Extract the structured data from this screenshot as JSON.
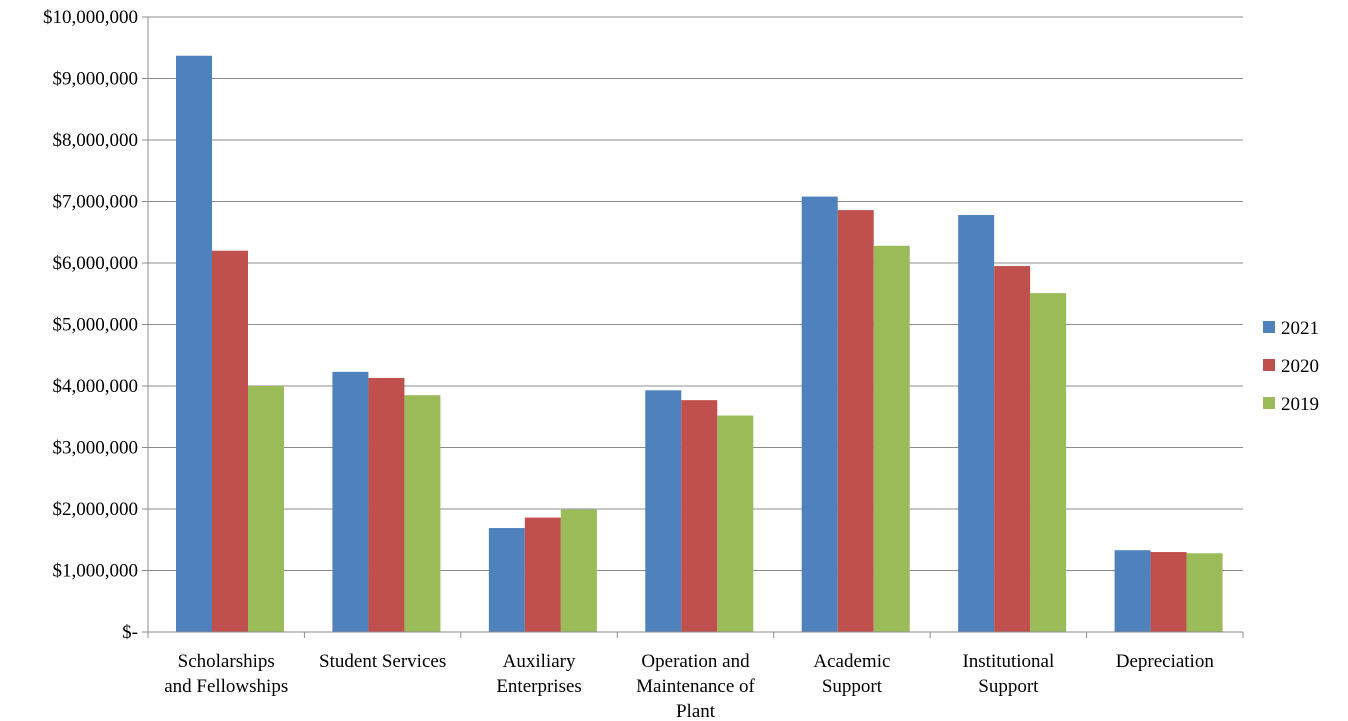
{
  "chart_data": {
    "type": "bar",
    "title": "",
    "xlabel": "",
    "ylabel": "",
    "categories": [
      [
        "Scholarships",
        "and Fellowships"
      ],
      [
        "Student Services"
      ],
      [
        "Auxiliary",
        "Enterprises"
      ],
      [
        "Operation and",
        "Maintenance of",
        "Plant"
      ],
      [
        "Academic",
        "Support"
      ],
      [
        "Institutional",
        "Support"
      ],
      [
        "Depreciation"
      ]
    ],
    "series": [
      {
        "name": "2021",
        "color": "#4F81BD",
        "values": [
          9370000,
          4230000,
          1690000,
          3930000,
          7080000,
          6780000,
          1330000
        ]
      },
      {
        "name": "2020",
        "color": "#C0504D",
        "values": [
          6200000,
          4130000,
          1860000,
          3770000,
          6860000,
          5950000,
          1300000
        ]
      },
      {
        "name": "2019",
        "color": "#9BBB59",
        "values": [
          4000000,
          3850000,
          1990000,
          3520000,
          6280000,
          5510000,
          1280000
        ]
      }
    ],
    "ylim": [
      0,
      10000000
    ],
    "y_ticks": [
      0,
      1000000,
      2000000,
      3000000,
      4000000,
      5000000,
      6000000,
      7000000,
      8000000,
      9000000,
      10000000
    ],
    "y_tick_labels": [
      "$-",
      "$1,000,000",
      "$2,000,000",
      "$3,000,000",
      "$4,000,000",
      "$5,000,000",
      "$6,000,000",
      "$7,000,000",
      "$8,000,000",
      "$9,000,000",
      "$10,000,000"
    ],
    "grid": true,
    "legend": "right"
  }
}
